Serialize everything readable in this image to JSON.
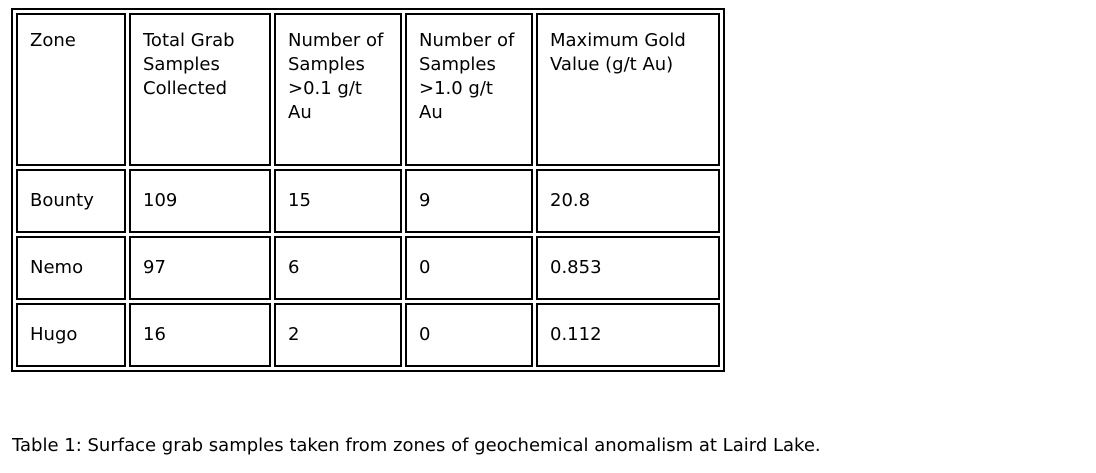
{
  "table": {
    "headers": [
      "Zone",
      "Total Grab Samples Collected",
      "Number of Samples >0.1 g/t Au",
      "Number of Samples >1.0 g/t Au",
      "Maximum Gold Value (g/t Au)"
    ],
    "rows": [
      [
        "Bounty",
        "109",
        "15",
        "9",
        "20.8"
      ],
      [
        "Nemo",
        "97",
        "6",
        "0",
        "0.853"
      ],
      [
        "Hugo",
        "16",
        "2",
        "0",
        "0.112"
      ]
    ]
  },
  "caption": "Table 1: Surface grab samples taken from zones of geochemical anomalism at Laird Lake."
}
